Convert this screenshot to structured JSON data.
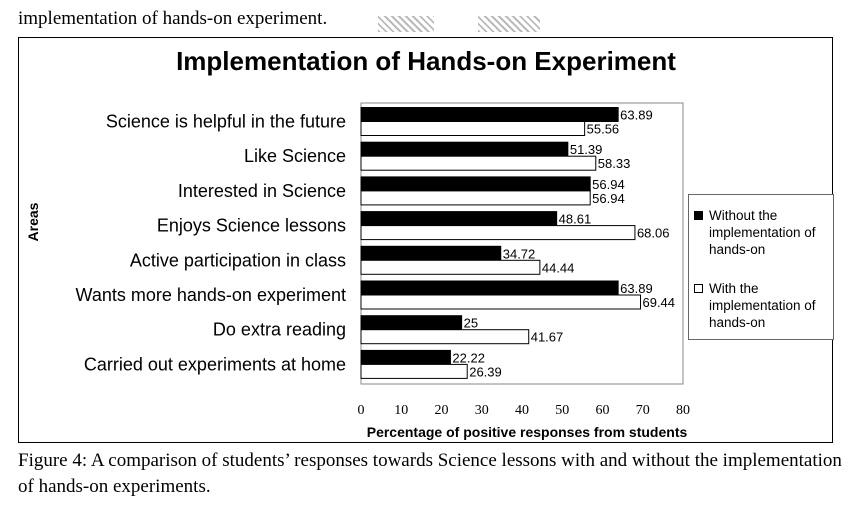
{
  "top_text": "implementation of hands-on experiment.",
  "caption": "Figure 4:   A comparison of students’ responses towards Science lessons with and without the implementation of hands-on experiments.",
  "chart_data": {
    "type": "bar",
    "orientation": "horizontal",
    "title": "Implementation of Hands-on Experiment",
    "xlabel": "Percentage of positive responses from students",
    "ylabel": "Areas",
    "xlim": [
      0,
      80
    ],
    "xticks": [
      0,
      10,
      20,
      30,
      40,
      50,
      60,
      70,
      80
    ],
    "grid": false,
    "legend_position": "right",
    "categories": [
      "Science is helpful in the future",
      "Like Science",
      "Interested in Science",
      "Enjoys Science lessons",
      "Active participation in class",
      "Wants more hands-on experiment",
      "Do extra reading",
      "Carried out experiments at home"
    ],
    "series": [
      {
        "name": "Without the implementation of hands-on",
        "color": "#000000",
        "values": [
          63.89,
          51.39,
          56.94,
          48.61,
          34.72,
          63.89,
          25,
          22.22
        ]
      },
      {
        "name": "With the implementation of hands-on",
        "color": "#ffffff",
        "values": [
          55.56,
          58.33,
          56.94,
          68.06,
          44.44,
          69.44,
          41.67,
          26.39
        ]
      }
    ]
  }
}
